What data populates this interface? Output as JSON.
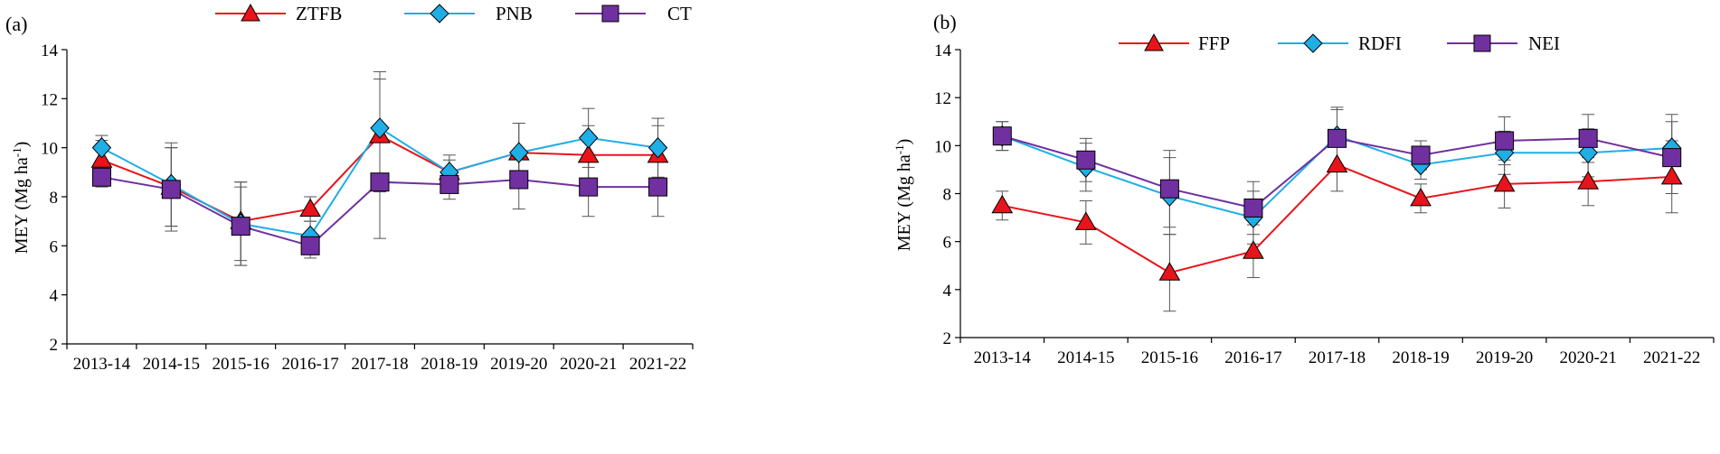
{
  "chart_data": [
    {
      "type": "line",
      "panel_label": "(a)",
      "title": "",
      "xlabel": "",
      "ylabel": "MEY (Mg ha",
      "ylabel_sup": "-1",
      "ylabel_end": ")",
      "ylim": [
        2,
        14
      ],
      "yticks": [
        "2",
        "4",
        "6",
        "8",
        "10",
        "12",
        "14"
      ],
      "grid": false,
      "legend": "top",
      "categories": [
        "2013-14",
        "2014-15",
        "2015-16",
        "2016-17",
        "2017-18",
        "2018-19",
        "2019-20",
        "2020-21",
        "2021-22"
      ],
      "series": [
        {
          "name": "ZTFB",
          "color": "#e8141b",
          "marker": "triangle",
          "values": [
            9.5,
            8.4,
            7.0,
            7.5,
            10.5,
            9.0,
            9.8,
            9.7,
            9.7
          ],
          "error": [
            0.8,
            1.6,
            1.6,
            0.5,
            2.3,
            0.5,
            1.2,
            1.2,
            1.2
          ]
        },
        {
          "name": "PNB",
          "color": "#1faee6",
          "marker": "diamond",
          "values": [
            10.0,
            8.5,
            6.9,
            6.4,
            10.8,
            9.0,
            9.8,
            10.4,
            10.0
          ],
          "error": [
            0.5,
            1.7,
            1.7,
            0.6,
            2.3,
            0.7,
            1.2,
            1.2,
            1.2
          ]
        },
        {
          "name": "CT",
          "color": "#7030a0",
          "marker": "square",
          "values": [
            8.8,
            8.3,
            6.8,
            6.0,
            8.6,
            8.5,
            8.7,
            8.4,
            8.4
          ],
          "error": [
            0.4,
            1.7,
            1.6,
            0.5,
            2.3,
            0.6,
            1.2,
            1.2,
            1.2
          ]
        }
      ]
    },
    {
      "type": "line",
      "panel_label": "(b)",
      "title": "",
      "xlabel": "",
      "ylabel": "MEY (Mg ha",
      "ylabel_sup": "-1",
      "ylabel_end": ")",
      "ylim": [
        2,
        14
      ],
      "yticks": [
        "2",
        "4",
        "6",
        "8",
        "10",
        "12",
        "14"
      ],
      "grid": false,
      "legend": "top",
      "categories": [
        "2013-14",
        "2014-15",
        "2015-16",
        "2016-17",
        "2017-18",
        "2018-19",
        "2019-20",
        "2020-21",
        "2021-22"
      ],
      "series": [
        {
          "name": "FFP",
          "color": "#e8141b",
          "marker": "triangle",
          "values": [
            7.5,
            6.8,
            4.7,
            5.6,
            9.2,
            7.8,
            8.4,
            8.5,
            8.7
          ],
          "error": [
            0.6,
            0.9,
            1.6,
            1.1,
            1.1,
            0.6,
            1.0,
            1.0,
            1.5
          ]
        },
        {
          "name": "RDFI",
          "color": "#1faee6",
          "marker": "diamond",
          "values": [
            10.4,
            9.1,
            7.9,
            7.0,
            10.4,
            9.2,
            9.7,
            9.7,
            9.9
          ],
          "error": [
            0.6,
            1.0,
            1.6,
            1.1,
            1.2,
            0.6,
            0.9,
            1.0,
            1.4
          ]
        },
        {
          "name": "NEI",
          "color": "#7030a0",
          "marker": "square",
          "values": [
            10.4,
            9.4,
            8.2,
            7.4,
            10.3,
            9.6,
            10.2,
            10.3,
            9.5
          ],
          "error": [
            0.6,
            0.9,
            1.6,
            1.1,
            1.2,
            0.6,
            1.0,
            1.0,
            1.5
          ]
        }
      ]
    }
  ]
}
